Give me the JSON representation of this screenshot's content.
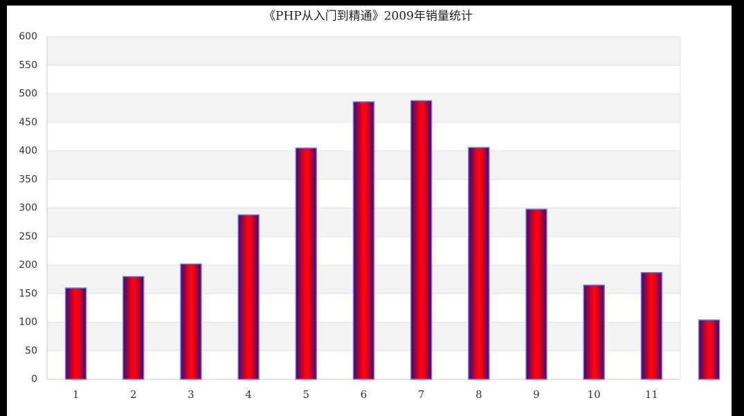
{
  "chart_data": {
    "type": "bar",
    "title": "《PHP从入门到精通》2009年销量统计",
    "categories": [
      "1",
      "2",
      "3",
      "4",
      "5",
      "6",
      "7",
      "8",
      "9",
      "10",
      "11",
      null
    ],
    "values": [
      160,
      180,
      202,
      288,
      405,
      486,
      488,
      406,
      298,
      165,
      187,
      104
    ],
    "color": "#ff0000",
    "ylim": [
      0,
      600
    ],
    "yticks": [
      0,
      50,
      100,
      150,
      200,
      250,
      300,
      350,
      400,
      450,
      500,
      550,
      600
    ],
    "grid": true
  }
}
